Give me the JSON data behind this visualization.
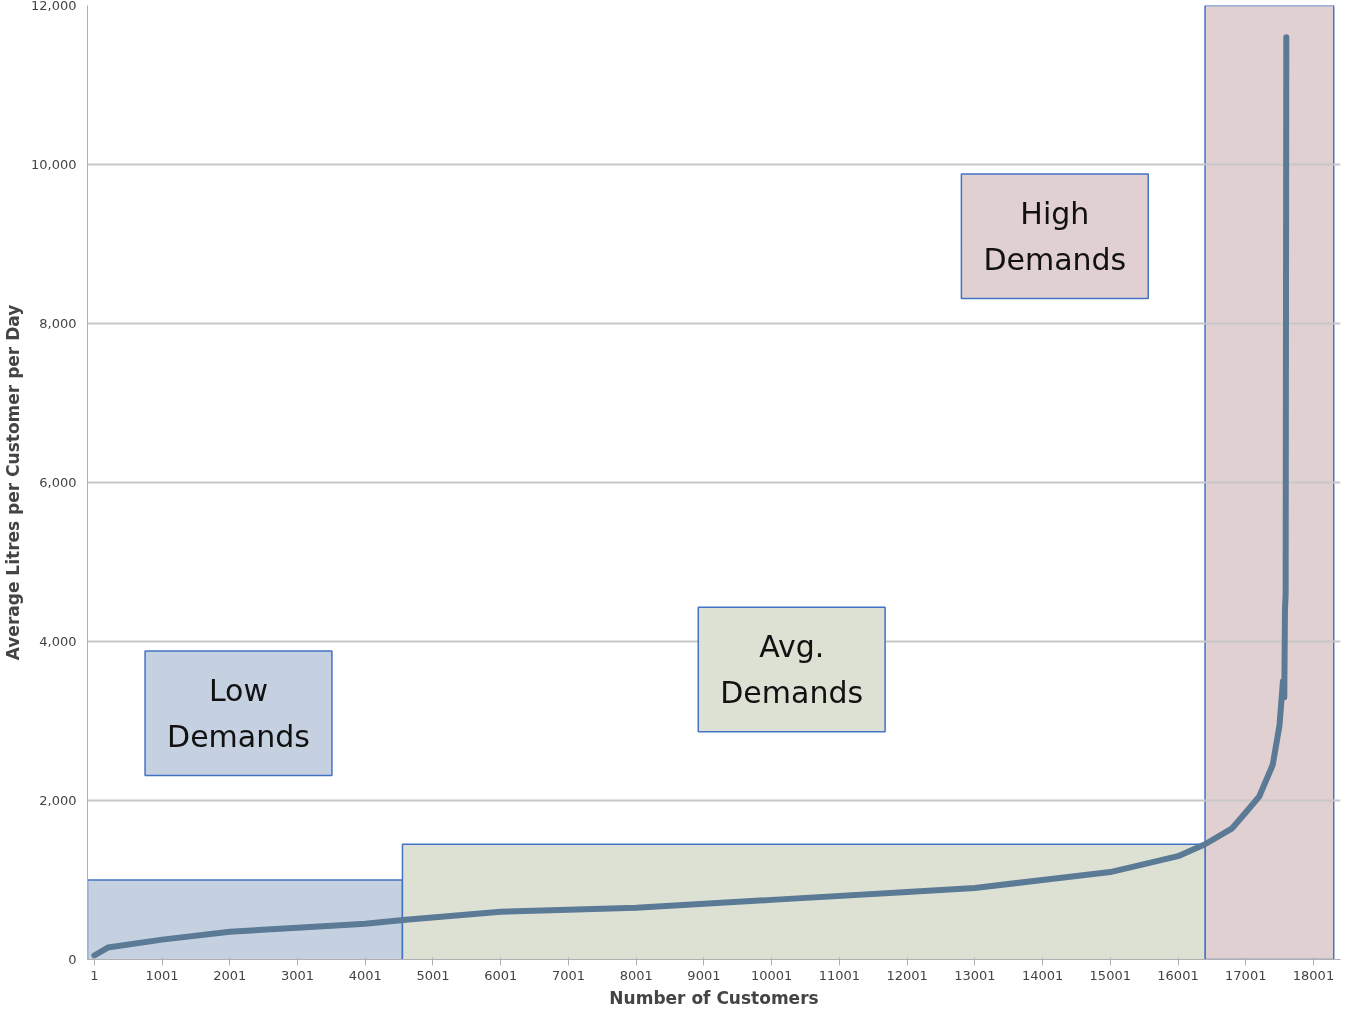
{
  "chart_data": {
    "type": "line",
    "xlabel": "Number of Customers",
    "ylabel": "Average Litres per Customer per Day",
    "xlim": [
      -100,
      18400
    ],
    "ylim": [
      0,
      12000
    ],
    "xticks": [
      1,
      1001,
      2001,
      3001,
      4001,
      5001,
      6001,
      7001,
      8001,
      9001,
      10001,
      11001,
      12001,
      13001,
      14001,
      15001,
      16001,
      17001,
      18001
    ],
    "yticks": [
      {
        "value": 0,
        "label": "0"
      },
      {
        "value": 2000,
        "label": "2,000"
      },
      {
        "value": 4000,
        "label": "4,000"
      },
      {
        "value": 6000,
        "label": "6,000"
      },
      {
        "value": 8000,
        "label": "8,000"
      },
      {
        "value": 10000,
        "label": "10,000"
      },
      {
        "value": 12000,
        "label": "12,000"
      }
    ],
    "grid": "y",
    "line_style": "solid",
    "series": [
      {
        "type": "area",
        "color": "#c5d1e1",
        "x": [
          -100,
          4550
        ],
        "values": [
          1000,
          1000
        ]
      },
      {
        "type": "area",
        "color": "#dde1d3",
        "x": [
          4550,
          16400
        ],
        "values": [
          1450,
          1450
        ]
      },
      {
        "color": "#5b7a96",
        "x": [
          1,
          200,
          1001,
          2001,
          3001,
          4001,
          4600,
          6001,
          8001,
          10001,
          12001,
          13001,
          14001,
          15001,
          16001,
          16400,
          16800,
          17001,
          17200,
          17400,
          17500,
          17550,
          17570,
          17580,
          17590,
          17600
        ],
        "values": [
          50,
          150,
          250,
          350,
          400,
          450,
          500,
          600,
          650,
          750,
          850,
          900,
          1000,
          1100,
          1300,
          1450,
          1650,
          1850,
          2050,
          2450,
          2950,
          3500,
          3300,
          4400,
          4600,
          11600
        ]
      }
    ],
    "bands": [
      {
        "axis": "x",
        "from": 16400,
        "to": 18300,
        "color": "#e0d0d1"
      }
    ],
    "annotations": [
      "Low Demands",
      "Avg. Demands",
      "High Demands"
    ]
  }
}
